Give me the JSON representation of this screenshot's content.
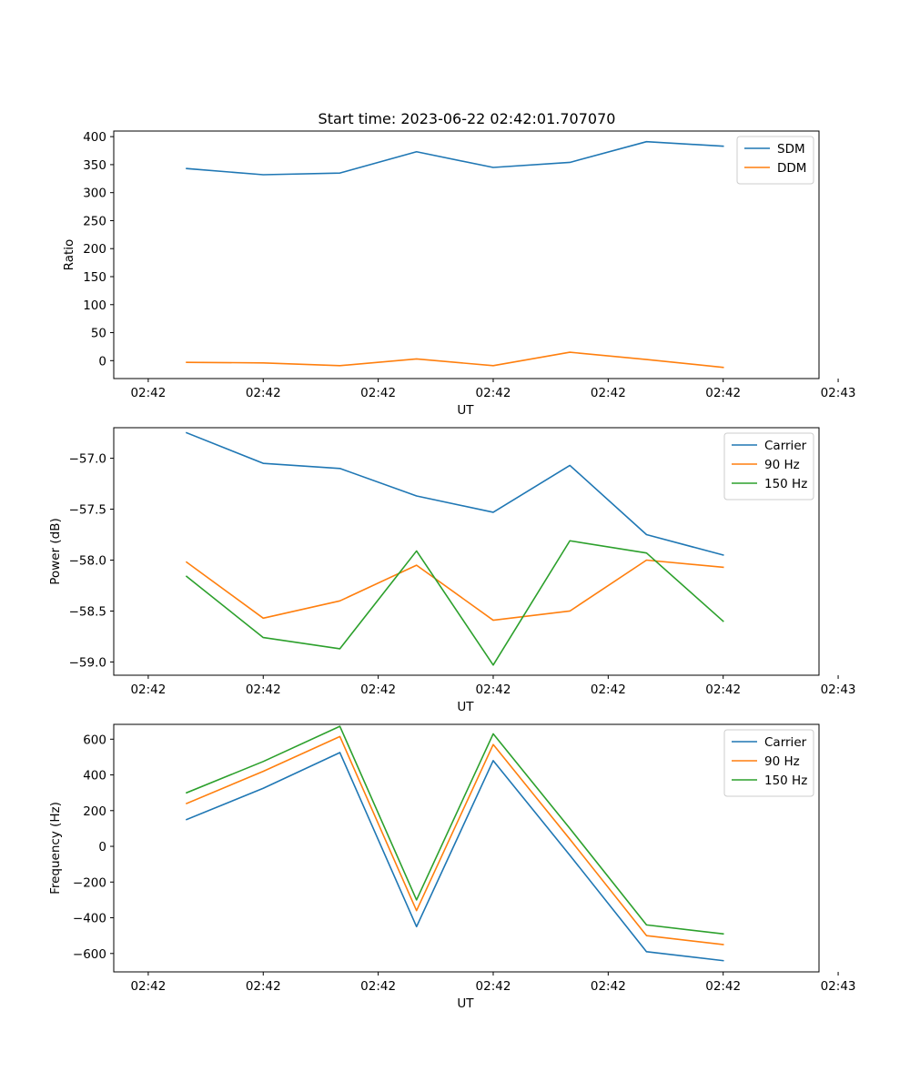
{
  "figure": {
    "title": "Start time: 2023-06-22 02:42:01.707070"
  },
  "chart_data": [
    {
      "type": "line",
      "xlabel": "UT",
      "ylabel": "Ratio",
      "xlim": [
        -0.45,
        8.75
      ],
      "ylim": [
        -32,
        410
      ],
      "x": [
        0.5,
        1.5,
        2.5,
        3.5,
        4.5,
        5.5,
        6.5,
        7.5
      ],
      "xticks": [
        0,
        1.5,
        3,
        4.5,
        6,
        7.5,
        9
      ],
      "xtick_labels": [
        "02:42",
        "02:42",
        "02:42",
        "02:42",
        "02:42",
        "02:42",
        "02:43"
      ],
      "yticks": [
        0,
        50,
        100,
        150,
        200,
        250,
        300,
        350,
        400
      ],
      "ytick_labels": [
        "0",
        "50",
        "100",
        "150",
        "200",
        "250",
        "300",
        "350",
        "400"
      ],
      "legend": "top-right",
      "grid": false,
      "series": [
        {
          "name": "SDM",
          "color": "#1f77b4",
          "values": [
            343,
            332,
            335,
            373,
            345,
            354,
            391,
            383
          ]
        },
        {
          "name": "DDM",
          "color": "#ff7f0e",
          "values": [
            -3,
            -4,
            -9,
            3,
            -9,
            15,
            2,
            -12
          ]
        }
      ]
    },
    {
      "type": "line",
      "xlabel": "UT",
      "ylabel": "Power (dB)",
      "xlim": [
        -0.45,
        8.75
      ],
      "ylim": [
        -59.13,
        -56.7
      ],
      "x": [
        0.5,
        1.5,
        2.5,
        3.5,
        4.5,
        5.5,
        6.5,
        7.5
      ],
      "xticks": [
        0,
        1.5,
        3,
        4.5,
        6,
        7.5,
        9
      ],
      "xtick_labels": [
        "02:42",
        "02:42",
        "02:42",
        "02:42",
        "02:42",
        "02:42",
        "02:43"
      ],
      "yticks": [
        -59.0,
        -58.5,
        -58.0,
        -57.5,
        -57.0
      ],
      "ytick_labels": [
        "−59.0",
        "−58.5",
        "−58.0",
        "−57.5",
        "−57.0"
      ],
      "legend": "top-right",
      "grid": false,
      "series": [
        {
          "name": "Carrier",
          "color": "#1f77b4",
          "values": [
            -56.75,
            -57.05,
            -57.1,
            -57.37,
            -57.53,
            -57.07,
            -57.75,
            -57.95
          ]
        },
        {
          "name": "90 Hz",
          "color": "#ff7f0e",
          "values": [
            -58.02,
            -58.57,
            -58.4,
            -58.05,
            -58.59,
            -58.5,
            -58.0,
            -58.07
          ]
        },
        {
          "name": "150 Hz",
          "color": "#2ca02c",
          "values": [
            -58.16,
            -58.76,
            -58.87,
            -57.91,
            -59.03,
            -57.81,
            -57.93,
            -58.6
          ]
        }
      ]
    },
    {
      "type": "line",
      "xlabel": "UT",
      "ylabel": "Frequency (Hz)",
      "xlim": [
        -0.45,
        8.75
      ],
      "ylim": [
        -703,
        683
      ],
      "x": [
        0.5,
        1.5,
        2.5,
        3.5,
        4.5,
        5.5,
        6.5,
        7.5
      ],
      "xticks": [
        0,
        1.5,
        3,
        4.5,
        6,
        7.5,
        9
      ],
      "xtick_labels": [
        "02:42",
        "02:42",
        "02:42",
        "02:42",
        "02:42",
        "02:42",
        "02:43"
      ],
      "yticks": [
        -600,
        -400,
        -200,
        0,
        200,
        400,
        600
      ],
      "ytick_labels": [
        "−600",
        "−400",
        "−200",
        "0",
        "200",
        "400",
        "600"
      ],
      "legend": "top-right",
      "grid": false,
      "series": [
        {
          "name": "Carrier",
          "color": "#1f77b4",
          "values": [
            150,
            325,
            525,
            -450,
            480,
            -50,
            -590,
            -640
          ]
        },
        {
          "name": "90 Hz",
          "color": "#ff7f0e",
          "values": [
            240,
            420,
            615,
            -360,
            570,
            40,
            -500,
            -550
          ]
        },
        {
          "name": "150 Hz",
          "color": "#2ca02c",
          "values": [
            300,
            475,
            672,
            -300,
            630,
            100,
            -440,
            -490
          ]
        }
      ]
    }
  ]
}
